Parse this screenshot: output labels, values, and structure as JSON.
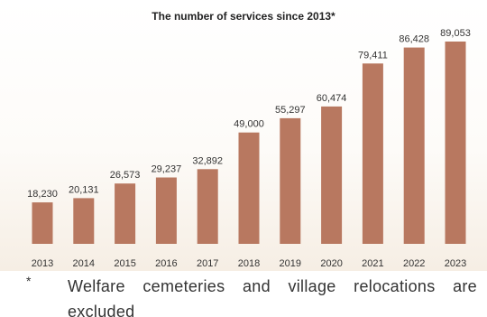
{
  "chart_data": {
    "type": "bar",
    "title": "The number of services since 2013*",
    "categories": [
      "2013",
      "2014",
      "2015",
      "2016",
      "2017",
      "2018",
      "2019",
      "2020",
      "2021",
      "2022",
      "2023"
    ],
    "values": [
      18230,
      20131,
      26573,
      29237,
      32892,
      49000,
      55297,
      60474,
      79411,
      86428,
      89053
    ],
    "value_labels": [
      "18,230",
      "20,131",
      "26,573",
      "29,237",
      "32,892",
      "49,000",
      "55,297",
      "60,474",
      "79,411",
      "86,428",
      "89,053"
    ],
    "xlabel": "",
    "ylabel": "",
    "grid": false,
    "bar_color": "#b87860"
  },
  "footnote": {
    "mark": "*",
    "line1": "Welfare cemeteries and village relocations are",
    "line2": "excluded"
  }
}
